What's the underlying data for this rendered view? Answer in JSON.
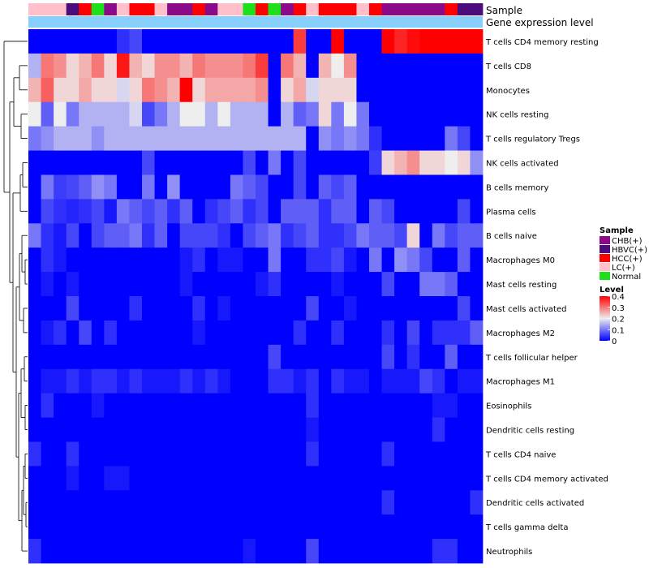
{
  "chart_data": {
    "type": "heatmap",
    "annotation_rows": [
      {
        "name": "Sample",
        "label": "Sample"
      },
      {
        "name": "Gene expression level",
        "label": "Gene expression level"
      }
    ],
    "sample_annotation": [
      "LC(+)",
      "LC(+)",
      "LC(+)",
      "HBVC(+)",
      "HCC(+)",
      "Normal",
      "CHB(+)",
      "LC(+)",
      "HCC(+)",
      "HCC(+)",
      "LC(+)",
      "CHB(+)",
      "CHB(+)",
      "HCC(+)",
      "CHB(+)",
      "LC(+)",
      "LC(+)",
      "Normal",
      "HCC(+)",
      "Normal",
      "CHB(+)",
      "HCC(+)",
      "LC(+)",
      "HCC(+)",
      "HCC(+)",
      "HCC(+)",
      "LC(+)",
      "HCC(+)",
      "CHB(+)",
      "CHB(+)",
      "CHB(+)",
      "CHB(+)",
      "CHB(+)",
      "HCC(+)",
      "HBVC(+)",
      "HBVC(+)"
    ],
    "sample_colors": {
      "CHB(+)": "#8B0A8B",
      "HBVC(+)": "#4B0D7E",
      "HCC(+)": "#FF0000",
      "LC(+)": "#FFC0CB",
      "Normal": "#1BE01B"
    },
    "gene_expression_color": "#87CEFA",
    "rows": [
      "T cells CD4 memory resting",
      "T cells CD8",
      "Monocytes",
      "NK cells resting",
      "T cells regulatory  Tregs",
      "NK cells activated",
      "B cells memory",
      "Plasma cells",
      "B cells naive",
      "Macrophages M0",
      "Mast cells resting",
      "Mast cells activated",
      "Macrophages M2",
      "T cells follicular helper",
      "Macrophages M1",
      "Eosinophils",
      "Dendritic cells resting",
      "T cells CD4 naive",
      "T cells CD4 memory activated",
      "Dendritic cells activated",
      "T cells gamma delta",
      "Neutrophils"
    ],
    "values": [
      [
        0,
        0,
        0,
        0,
        0,
        0,
        0,
        0.04,
        0.06,
        0,
        0,
        0,
        0,
        0,
        0,
        0,
        0,
        0,
        0,
        0,
        0,
        0.35,
        0,
        0,
        0.4,
        0,
        0,
        0,
        0.4,
        0.37,
        0.39,
        0.4,
        0.4,
        0.4,
        0.4,
        0.4
      ],
      [
        0.15,
        0.3,
        0.28,
        0.22,
        0.25,
        0.3,
        0.22,
        0.38,
        0.25,
        0.22,
        0.28,
        0.28,
        0.25,
        0.3,
        0.28,
        0.28,
        0.28,
        0.3,
        0.35,
        0,
        0.3,
        0.25,
        0,
        0.25,
        0.2,
        0.28,
        0,
        0,
        0,
        0,
        0,
        0,
        0,
        0,
        0,
        0
      ],
      [
        0.25,
        0.32,
        0.22,
        0.22,
        0.26,
        0.22,
        0.22,
        0.18,
        0.22,
        0.3,
        0.28,
        0.25,
        0.4,
        0.22,
        0.26,
        0.26,
        0.26,
        0.26,
        0.28,
        0,
        0.22,
        0.26,
        0.18,
        0.22,
        0.22,
        0.22,
        0,
        0,
        0,
        0,
        0,
        0,
        0,
        0,
        0,
        0
      ],
      [
        0.2,
        0.08,
        0.2,
        0.1,
        0.15,
        0.15,
        0.15,
        0.15,
        0.18,
        0.06,
        0.1,
        0.15,
        0.2,
        0.2,
        0.15,
        0.2,
        0.15,
        0.15,
        0.15,
        0,
        0.15,
        0.08,
        0.1,
        0.22,
        0.1,
        0.2,
        0.1,
        0,
        0,
        0,
        0,
        0,
        0,
        0,
        0,
        0
      ],
      [
        0.1,
        0.12,
        0.15,
        0.15,
        0.15,
        0.12,
        0.15,
        0.15,
        0.15,
        0.15,
        0.15,
        0.15,
        0.15,
        0.15,
        0.15,
        0.15,
        0.15,
        0.15,
        0.15,
        0.15,
        0.15,
        0.15,
        0,
        0.12,
        0.1,
        0.12,
        0.1,
        0.04,
        0,
        0,
        0,
        0,
        0,
        0.1,
        0.06,
        0
      ],
      [
        0,
        0,
        0,
        0,
        0,
        0,
        0,
        0,
        0,
        0.06,
        0,
        0,
        0,
        0,
        0,
        0,
        0,
        0.06,
        0,
        0.1,
        0,
        0.06,
        0,
        0,
        0,
        0,
        0,
        0.05,
        0.22,
        0.25,
        0.28,
        0.22,
        0.22,
        0.2,
        0.22,
        0.12
      ],
      [
        0,
        0.1,
        0.05,
        0.06,
        0.08,
        0.12,
        0.1,
        0,
        0,
        0.1,
        0,
        0.12,
        0,
        0,
        0,
        0,
        0.1,
        0.08,
        0.06,
        0,
        0,
        0.06,
        0,
        0.08,
        0.06,
        0.08,
        0,
        0,
        0,
        0,
        0,
        0,
        0,
        0,
        0,
        0
      ],
      [
        0,
        0.06,
        0.04,
        0.03,
        0.04,
        0.06,
        0.02,
        0.1,
        0.08,
        0.06,
        0.08,
        0.04,
        0.08,
        0,
        0.04,
        0.06,
        0.08,
        0.04,
        0.06,
        0,
        0.08,
        0.08,
        0.08,
        0.04,
        0.08,
        0.08,
        0,
        0.08,
        0.06,
        0,
        0,
        0,
        0,
        0,
        0.06,
        0
      ],
      [
        0.1,
        0.04,
        0.02,
        0.06,
        0,
        0.06,
        0.08,
        0.08,
        0.1,
        0.04,
        0.08,
        0,
        0.06,
        0.06,
        0.06,
        0.04,
        0,
        0.06,
        0.08,
        0.1,
        0.04,
        0.06,
        0.08,
        0.04,
        0.04,
        0.06,
        0.1,
        0.08,
        0.08,
        0.06,
        0.22,
        0,
        0.1,
        0.06,
        0.08,
        0.08
      ],
      [
        0,
        0.04,
        0.02,
        0,
        0,
        0,
        0,
        0,
        0,
        0,
        0,
        0,
        0.02,
        0.04,
        0,
        0.02,
        0.02,
        0,
        0,
        0.1,
        0,
        0,
        0.04,
        0.04,
        0.06,
        0.02,
        0,
        0.1,
        0,
        0.12,
        0.1,
        0.06,
        0,
        0,
        0.08,
        0
      ],
      [
        0,
        0.02,
        0,
        0.02,
        0,
        0,
        0,
        0,
        0,
        0,
        0,
        0,
        0.02,
        0,
        0,
        0,
        0,
        0,
        0.02,
        0.04,
        0,
        0,
        0,
        0,
        0.02,
        0,
        0,
        0,
        0.06,
        0,
        0,
        0.1,
        0.1,
        0.08,
        0,
        0
      ],
      [
        0,
        0,
        0,
        0.06,
        0,
        0,
        0,
        0,
        0.04,
        0,
        0,
        0,
        0,
        0.04,
        0,
        0.02,
        0,
        0,
        0,
        0,
        0,
        0,
        0.06,
        0,
        0,
        0.02,
        0,
        0,
        0,
        0,
        0,
        0,
        0,
        0,
        0.06,
        0
      ],
      [
        0,
        0.02,
        0.04,
        0,
        0.06,
        0,
        0.04,
        0,
        0,
        0,
        0,
        0,
        0,
        0.02,
        0,
        0,
        0,
        0,
        0,
        0,
        0,
        0.04,
        0,
        0,
        0.04,
        0,
        0,
        0,
        0.04,
        0,
        0.06,
        0,
        0.04,
        0.04,
        0.04,
        0.08
      ],
      [
        0,
        0,
        0,
        0,
        0,
        0,
        0,
        0,
        0,
        0,
        0,
        0,
        0,
        0,
        0,
        0,
        0,
        0,
        0,
        0.06,
        0,
        0,
        0,
        0,
        0,
        0,
        0,
        0,
        0.06,
        0,
        0.04,
        0,
        0,
        0.08,
        0,
        0
      ],
      [
        0,
        0.02,
        0.02,
        0.04,
        0.02,
        0.04,
        0.04,
        0.02,
        0.04,
        0.02,
        0.02,
        0.02,
        0.04,
        0.02,
        0.04,
        0.02,
        0,
        0,
        0,
        0.04,
        0.04,
        0.02,
        0.04,
        0,
        0.04,
        0.02,
        0.02,
        0,
        0.02,
        0.02,
        0.02,
        0.06,
        0.04,
        0,
        0.02,
        0.02
      ],
      [
        0,
        0.04,
        0,
        0,
        0,
        0.02,
        0,
        0,
        0,
        0,
        0,
        0,
        0,
        0,
        0,
        0,
        0,
        0,
        0,
        0,
        0,
        0,
        0.04,
        0,
        0,
        0,
        0,
        0,
        0,
        0,
        0,
        0,
        0.02,
        0.02,
        0,
        0
      ],
      [
        0,
        0,
        0,
        0,
        0,
        0,
        0,
        0,
        0,
        0,
        0,
        0,
        0,
        0,
        0,
        0,
        0,
        0,
        0,
        0,
        0,
        0,
        0.02,
        0,
        0,
        0,
        0,
        0,
        0,
        0,
        0,
        0,
        0.04,
        0,
        0,
        0
      ],
      [
        0.04,
        0,
        0,
        0.04,
        0,
        0,
        0,
        0,
        0,
        0,
        0,
        0,
        0,
        0,
        0,
        0,
        0,
        0,
        0,
        0,
        0,
        0,
        0.04,
        0,
        0,
        0,
        0,
        0,
        0.04,
        0,
        0,
        0,
        0,
        0,
        0,
        0
      ],
      [
        0,
        0,
        0,
        0.02,
        0,
        0,
        0.02,
        0.02,
        0,
        0,
        0,
        0,
        0,
        0,
        0,
        0,
        0,
        0,
        0,
        0,
        0,
        0,
        0,
        0,
        0,
        0,
        0,
        0,
        0,
        0,
        0,
        0,
        0,
        0,
        0,
        0
      ],
      [
        0,
        0,
        0,
        0,
        0,
        0,
        0,
        0,
        0,
        0,
        0,
        0,
        0,
        0,
        0,
        0,
        0,
        0,
        0,
        0,
        0,
        0,
        0,
        0,
        0,
        0,
        0,
        0,
        0.04,
        0,
        0,
        0,
        0,
        0,
        0,
        0.04
      ],
      [
        0,
        0,
        0,
        0,
        0,
        0,
        0,
        0,
        0,
        0,
        0,
        0,
        0,
        0,
        0,
        0,
        0,
        0,
        0,
        0,
        0,
        0,
        0,
        0,
        0,
        0,
        0,
        0,
        0,
        0,
        0,
        0,
        0,
        0,
        0,
        0
      ],
      [
        0.04,
        0,
        0,
        0,
        0,
        0,
        0,
        0,
        0,
        0,
        0,
        0,
        0,
        0,
        0,
        0,
        0,
        0.02,
        0,
        0,
        0,
        0,
        0.06,
        0,
        0,
        0,
        0,
        0,
        0,
        0,
        0,
        0,
        0.04,
        0.04,
        0,
        0
      ]
    ],
    "color_scale": {
      "min": 0,
      "max": 0.4,
      "stops": [
        {
          "value": 0,
          "color": "#0000FF"
        },
        {
          "value": 0.2,
          "color": "#EEEEEE"
        },
        {
          "value": 0.4,
          "color": "#FF0000"
        }
      ]
    },
    "legend": {
      "sample_title": "Sample",
      "sample_items": [
        "CHB(+)",
        "HBVC(+)",
        "HCC(+)",
        "LC(+)",
        "Normal"
      ],
      "level_title": "Level",
      "level_ticks": [
        "0.4",
        "0.3",
        "0.2",
        "0.1",
        "0"
      ],
      "placement": "right"
    }
  }
}
